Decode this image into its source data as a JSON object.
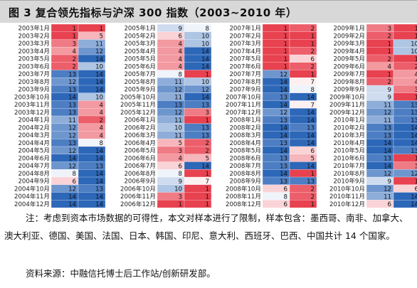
{
  "title": "图 3  复合领先指标与沪深 300 指数（2003~2010 年）",
  "note": "注：考虑到资本市场数据的可得性，本文对样本进行了限制，样本包含：墨西哥、南非、加拿大、澳大利亚、德国、美国、法国、日本、韩国、印尼、意大利、西班牙、巴西、中国共计 14 个国家。",
  "source": "资料来源：中融信托博士后工作站/创新研发部。",
  "colors": {
    "red": "#e8414f",
    "blue": "#2d67b8",
    "white": "#ffffff"
  },
  "chart_data": {
    "type": "heatmap",
    "scale": {
      "min": 1,
      "max": 14,
      "low_color": "red",
      "high_color": "blue"
    },
    "columns": [
      {
        "start": "2003年1月",
        "months": 24,
        "a": [
          1,
          1,
          3,
          4,
          2,
          2,
          13,
          12,
          13,
          14,
          13,
          13,
          11,
          12,
          12,
          13,
          12,
          14,
          12,
          8,
          6,
          12,
          14,
          14
        ],
        "b": [
          1,
          5,
          11,
          12,
          14,
          10,
          14,
          14,
          14,
          10,
          4,
          4,
          2,
          4,
          4,
          8,
          14,
          14,
          13,
          14,
          14,
          13,
          14,
          14
        ]
      },
      {
        "start": "2005年1月",
        "months": 24,
        "a": [
          9,
          6,
          4,
          4,
          4,
          4,
          8,
          11,
          12,
          11,
          13,
          12,
          11,
          10,
          11,
          5,
          3,
          4,
          6,
          8,
          9,
          10,
          3,
          1
        ],
        "b": [
          8,
          10,
          10,
          14,
          14,
          14,
          1,
          10,
          12,
          14,
          13,
          3,
          1,
          13,
          13,
          2,
          2,
          5,
          14,
          1,
          7,
          1,
          1,
          1
        ]
      },
      {
        "start": "2007年1月",
        "months": 24,
        "a": [
          1,
          1,
          1,
          1,
          1,
          1,
          12,
          14,
          14,
          13,
          14,
          12,
          13,
          14,
          14,
          13,
          14,
          13,
          13,
          14,
          13,
          6,
          8,
          6
        ],
        "b": [
          2,
          1,
          1,
          2,
          6,
          2,
          1,
          7,
          8,
          14,
          7,
          14,
          14,
          13,
          14,
          14,
          6,
          5,
          14,
          1,
          13,
          2,
          2,
          1
        ]
      },
      {
        "start": "2009年1月",
        "months": 24,
        "a": [
          3,
          2,
          1,
          1,
          2,
          4,
          1,
          2,
          9,
          9,
          11,
          12,
          11,
          13,
          13,
          14,
          14,
          13,
          14,
          12,
          9,
          12,
          11,
          6
        ],
        "b": [
          1,
          1,
          10,
          10,
          1,
          2,
          4,
          4,
          3,
          1,
          13,
          13,
          13,
          14,
          14,
          14,
          13,
          1,
          3,
          12,
          1,
          6,
          14,
          14
        ]
      }
    ]
  }
}
